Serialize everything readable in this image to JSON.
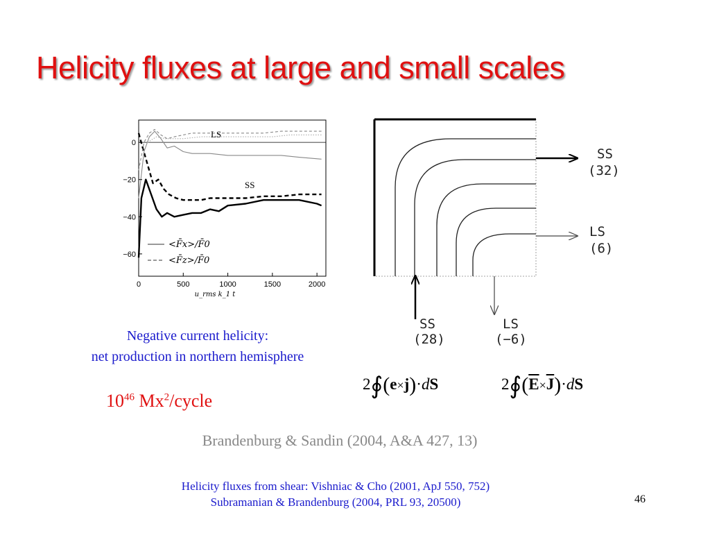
{
  "title": "Helicity fluxes at large and small scales",
  "chart_data": {
    "type": "line",
    "xlabel": "u_rms k_1 t",
    "ylabel": "",
    "xlim": [
      0,
      2100
    ],
    "ylim": [
      -72,
      12
    ],
    "x_ticks": [
      "0",
      "500",
      "1000",
      "1500",
      "2000"
    ],
    "y_ticks": [
      "0",
      "−20",
      "−40",
      "−60"
    ],
    "annotations": [
      "LS",
      "SS"
    ],
    "legend": {
      "placement": "bottom-left",
      "entries": [
        "<F̄x>/F̄0",
        "<F̄z>/F̄0"
      ]
    },
    "series": [
      {
        "label": "SS, Fx",
        "style": "solid",
        "points": [
          [
            0,
            -62
          ],
          [
            30,
            -30
          ],
          [
            80,
            -20
          ],
          [
            140,
            -28
          ],
          [
            200,
            -36
          ],
          [
            260,
            -40
          ],
          [
            320,
            -38
          ],
          [
            400,
            -40
          ],
          [
            500,
            -39
          ],
          [
            600,
            -38
          ],
          [
            700,
            -38
          ],
          [
            800,
            -36
          ],
          [
            900,
            -37
          ],
          [
            1000,
            -34
          ],
          [
            1200,
            -33
          ],
          [
            1400,
            -31
          ],
          [
            1600,
            -31
          ],
          [
            1800,
            -31
          ],
          [
            2000,
            -33
          ],
          [
            2050,
            -34
          ]
        ]
      },
      {
        "label": "SS, Fz",
        "style": "dashed",
        "points": [
          [
            0,
            5
          ],
          [
            40,
            -2
          ],
          [
            100,
            -12
          ],
          [
            160,
            -22
          ],
          [
            220,
            -20
          ],
          [
            280,
            -25
          ],
          [
            340,
            -28
          ],
          [
            420,
            -30
          ],
          [
            500,
            -31
          ],
          [
            600,
            -31
          ],
          [
            700,
            -31
          ],
          [
            800,
            -30
          ],
          [
            1000,
            -30
          ],
          [
            1200,
            -30
          ],
          [
            1400,
            -29
          ],
          [
            1600,
            -29
          ],
          [
            1800,
            -28
          ],
          [
            2050,
            -28
          ]
        ]
      },
      {
        "label": "LS, Fx",
        "style": "solid-gray",
        "points": [
          [
            0,
            -30
          ],
          [
            60,
            -5
          ],
          [
            120,
            3
          ],
          [
            180,
            6
          ],
          [
            250,
            2
          ],
          [
            320,
            -3
          ],
          [
            400,
            -2
          ],
          [
            500,
            -5
          ],
          [
            600,
            -6
          ],
          [
            700,
            -6
          ],
          [
            800,
            -6
          ],
          [
            1000,
            -7
          ],
          [
            1200,
            -7
          ],
          [
            1400,
            -7
          ],
          [
            1600,
            -7
          ],
          [
            1800,
            -8
          ],
          [
            2050,
            -9
          ]
        ]
      },
      {
        "label": "LS, Fz",
        "style": "dashed-gray",
        "points": [
          [
            0,
            -15
          ],
          [
            60,
            0
          ],
          [
            120,
            5
          ],
          [
            180,
            7
          ],
          [
            250,
            4
          ],
          [
            320,
            2
          ],
          [
            400,
            3
          ],
          [
            500,
            4
          ],
          [
            600,
            5
          ],
          [
            700,
            5
          ],
          [
            800,
            5
          ],
          [
            1000,
            5
          ],
          [
            1200,
            5
          ],
          [
            1400,
            5
          ],
          [
            1600,
            6
          ],
          [
            1800,
            6
          ],
          [
            2050,
            6
          ]
        ]
      },
      {
        "label": "LS, dotted",
        "style": "dotted-gray",
        "points": [
          [
            100,
            0
          ],
          [
            200,
            3
          ],
          [
            300,
            2
          ],
          [
            400,
            2
          ],
          [
            500,
            2
          ],
          [
            700,
            3
          ],
          [
            900,
            3
          ],
          [
            1100,
            3
          ],
          [
            1300,
            3
          ],
          [
            1500,
            3
          ],
          [
            1700,
            4
          ],
          [
            1900,
            4
          ],
          [
            2050,
            4
          ]
        ]
      }
    ]
  },
  "diagram": {
    "labels": {
      "ss_right": "SS",
      "ss_right_val": "(32)",
      "ls_right": "LS",
      "ls_right_val": "(6)",
      "ss_bottom": "SS",
      "ss_bottom_val": "(28)",
      "ls_bottom": "LS",
      "ls_bottom_val": "(−6)"
    }
  },
  "caption": {
    "line1": "Negative current helicity:",
    "line2": "net production in northern hemisphere"
  },
  "rate": {
    "base": "10",
    "exp": "46",
    "unit": " Mx",
    "unit_exp": "2",
    "tail": "/cycle"
  },
  "formula1": {
    "coef": "2",
    "vec_a": "e",
    "cross": "×",
    "vec_b": "j",
    "dot": "·",
    "d": "d",
    "surf": "S"
  },
  "formula2": {
    "coef": "2",
    "vec_a": "E",
    "cross": "×",
    "vec_b": "J",
    "dot": "·",
    "d": "d",
    "surf": "S"
  },
  "references": {
    "main": "Brandenburg & Sandin (2004, A&A 427, 13)",
    "line1": "Helicity fluxes from shear: Vishniac & Cho (2001, ApJ 550, 752)",
    "line2": "Subramanian & Brandenburg (2004, PRL 93, 20500)"
  },
  "page_number": "46"
}
